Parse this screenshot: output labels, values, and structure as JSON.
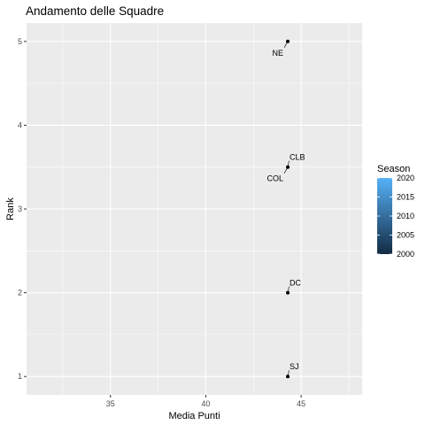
{
  "chart_data": {
    "type": "scatter",
    "title": "Andamento delle Squadre",
    "xlabel": "Media Punti",
    "ylabel": "Rank",
    "xlim": [
      30.6,
      48.2
    ],
    "ylim": [
      0.78,
      5.22
    ],
    "x_ticks": [
      35,
      40,
      45
    ],
    "y_ticks": [
      1,
      2,
      3,
      4,
      5
    ],
    "grid": true,
    "points": [
      {
        "label": "NE",
        "x": 44.3,
        "y": 5,
        "season": 2000,
        "label_pos": "below-left"
      },
      {
        "label": "CLB",
        "x": 44.3,
        "y": 3.5,
        "season": 2000,
        "label_pos": "above-right"
      },
      {
        "label": "COL",
        "x": 44.3,
        "y": 3.5,
        "season": 2000,
        "label_pos": "below-left"
      },
      {
        "label": "DC",
        "x": 44.3,
        "y": 2,
        "season": 2000,
        "label_pos": "above-right"
      },
      {
        "label": "SJ",
        "x": 44.3,
        "y": 1,
        "season": 2000,
        "label_pos": "above-right"
      }
    ],
    "legend": {
      "title": "Season",
      "position": "right",
      "ticks": [
        2000,
        2005,
        2010,
        2015,
        2020
      ],
      "color_low": "#132B43",
      "color_high": "#56B1F7"
    },
    "colors": {
      "panel": "#EBEBEB",
      "grid": "#FFFFFF",
      "point": "#000000",
      "axis_text": "#4D4D4D"
    }
  }
}
